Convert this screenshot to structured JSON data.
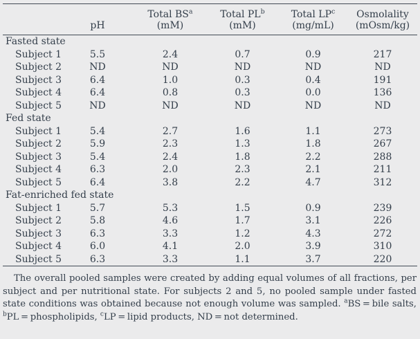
{
  "page": {
    "background_color": "#ebebec",
    "text_color": "#333e4a",
    "rule_color": "#424a55"
  },
  "table": {
    "headers": [
      {
        "line1": "",
        "sup": "",
        "line2": "pH"
      },
      {
        "line1": "Total BS",
        "sup": "a",
        "line2": "(mM)"
      },
      {
        "line1": "Total PL",
        "sup": "b",
        "line2": "(mM)"
      },
      {
        "line1": "Total LP",
        "sup": "c",
        "line2": "(mg/mL)"
      },
      {
        "line1": "Osmolality",
        "sup": "",
        "line2": "(mOsm/kg)"
      }
    ],
    "sections": [
      {
        "label": "Fasted state",
        "rows": [
          {
            "label": "Subject 1",
            "values": [
              "5.5",
              "2.4",
              "0.7",
              "0.9",
              "217"
            ]
          },
          {
            "label": "Subject 2",
            "values": [
              "ND",
              "ND",
              "ND",
              "ND",
              "ND"
            ]
          },
          {
            "label": "Subject 3",
            "values": [
              "6.4",
              "1.0",
              "0.3",
              "0.4",
              "191"
            ]
          },
          {
            "label": "Subject 4",
            "values": [
              "6.4",
              "0.8",
              "0.3",
              "0.0",
              "136"
            ]
          },
          {
            "label": "Subject 5",
            "values": [
              "ND",
              "ND",
              "ND",
              "ND",
              "ND"
            ]
          }
        ]
      },
      {
        "label": "Fed state",
        "rows": [
          {
            "label": "Subject 1",
            "values": [
              "5.4",
              "2.7",
              "1.6",
              "1.1",
              "273"
            ]
          },
          {
            "label": "Subject 2",
            "values": [
              "5.9",
              "2.3",
              "1.3",
              "1.8",
              "267"
            ]
          },
          {
            "label": "Subject 3",
            "values": [
              "5.4",
              "2.4",
              "1.8",
              "2.2",
              "288"
            ]
          },
          {
            "label": "Subject 4",
            "values": [
              "6.3",
              "2.0",
              "2.3",
              "2.1",
              "211"
            ]
          },
          {
            "label": "Subject 5",
            "values": [
              "6.4",
              "3.8",
              "2.2",
              "4.7",
              "312"
            ]
          }
        ]
      },
      {
        "label": "Fat-enriched fed state",
        "rows": [
          {
            "label": "Subject 1",
            "values": [
              "5.7",
              "5.3",
              "1.5",
              "0.9",
              "239"
            ]
          },
          {
            "label": "Subject 2",
            "values": [
              "5.8",
              "4.6",
              "1.7",
              "3.1",
              "226"
            ]
          },
          {
            "label": "Subject 3",
            "values": [
              "6.3",
              "3.3",
              "1.2",
              "4.3",
              "272"
            ]
          },
          {
            "label": "Subject 4",
            "values": [
              "6.0",
              "4.1",
              "2.0",
              "3.9",
              "310"
            ]
          },
          {
            "label": "Subject 5",
            "values": [
              "6.3",
              "3.3",
              "1.1",
              "3.7",
              "220"
            ]
          }
        ]
      }
    ]
  },
  "footnote": {
    "segments": [
      {
        "text": "The overall pooled samples were created by adding equal volumes of all fractions, per subject and per nutritional state. For subjects 2 and 5, no pooled sample under fasted state conditions was obtained because not enough volume was sampled. "
      },
      {
        "sup": "a"
      },
      {
        "text": "BS = bile salts, "
      },
      {
        "sup": "b"
      },
      {
        "text": "PL = phospholipids, "
      },
      {
        "sup": "c"
      },
      {
        "text": "LP = lipid products, ND = not determined."
      }
    ]
  }
}
